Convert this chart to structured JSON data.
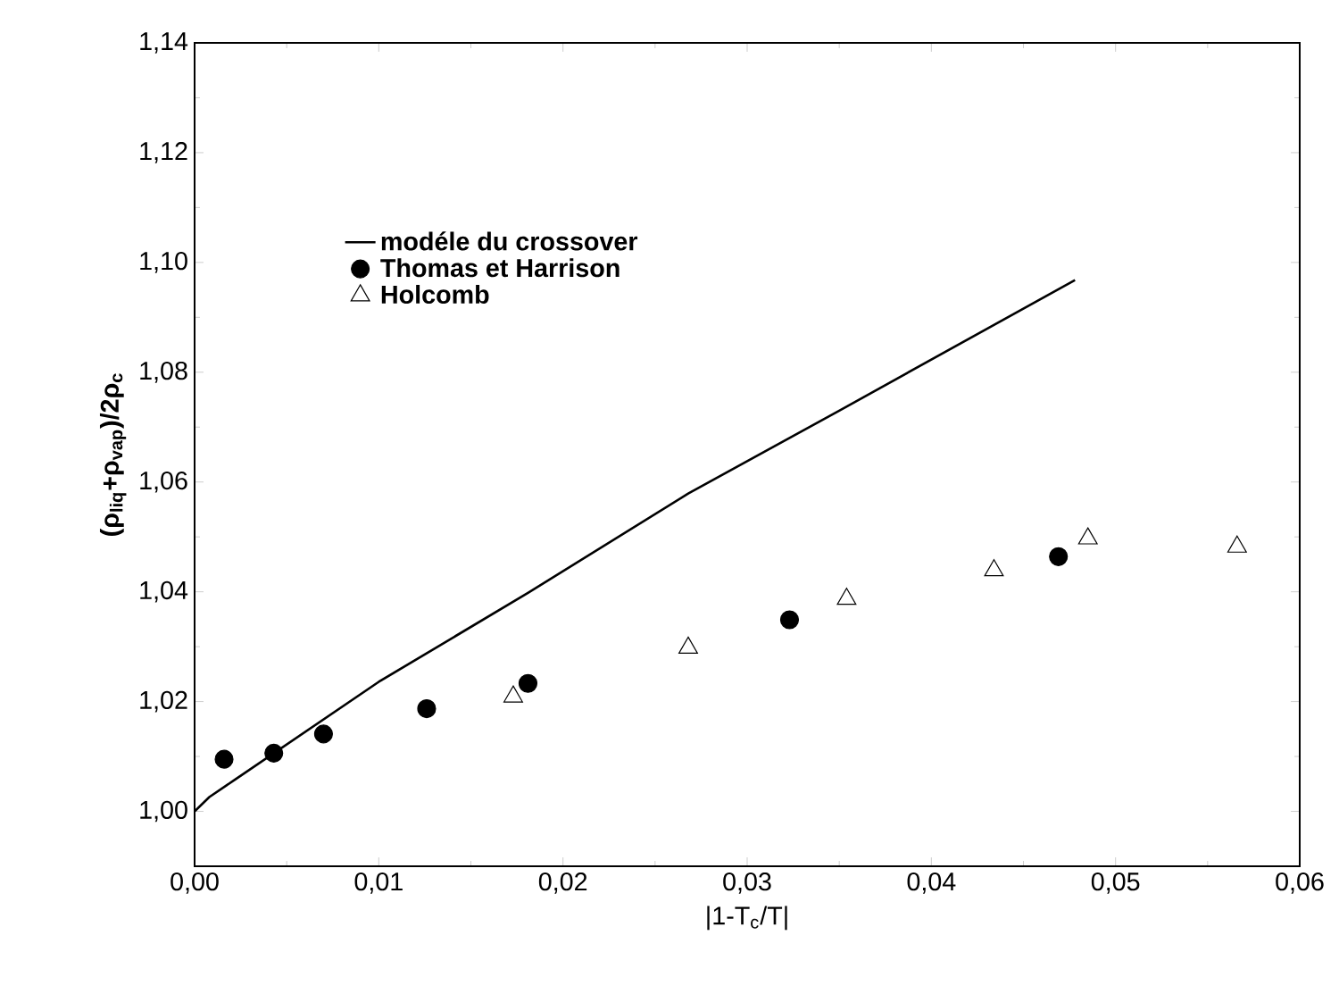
{
  "chart_data": {
    "type": "scatter",
    "xlabel": "|1-T$_{c}$/T|",
    "ylabel": "(ρ$_{liq}$+ρ$_{vap}$)/2ρ$_{c}$",
    "xlim": [
      0,
      0.06
    ],
    "ylim": [
      0.99,
      1.14
    ],
    "xticks": [
      {
        "value": 0,
        "label": "0,00"
      },
      {
        "value": 0.01,
        "label": "0,01"
      },
      {
        "value": 0.02,
        "label": "0,02"
      },
      {
        "value": 0.03,
        "label": "0,03"
      },
      {
        "value": 0.04,
        "label": "0,04"
      },
      {
        "value": 0.05,
        "label": "0,05"
      },
      {
        "value": 0.06,
        "label": "0,06"
      }
    ],
    "yticks": [
      {
        "value": 1.0,
        "label": "1,00"
      },
      {
        "value": 1.02,
        "label": "1,02"
      },
      {
        "value": 1.04,
        "label": "1,04"
      },
      {
        "value": 1.06,
        "label": "1,06"
      },
      {
        "value": 1.08,
        "label": "1,08"
      },
      {
        "value": 1.1,
        "label": "1,10"
      },
      {
        "value": 1.12,
        "label": "1,12"
      },
      {
        "value": 1.14,
        "label": "1,14"
      }
    ],
    "grid": false,
    "legend": "top left",
    "series": [
      {
        "name": "modéle du crossover",
        "type": "line",
        "color": "#000000",
        "marker": "none",
        "line_style": "solid",
        "x": [
          0,
          0.0008,
          0.0022,
          0.01,
          0.0181,
          0.0268,
          0.035,
          0.0478
        ],
        "values": [
          1.0,
          1.0026,
          1.0058,
          1.0236,
          1.0398,
          1.0579,
          1.073,
          1.0968
        ]
      },
      {
        "name": "Thomas et Harrison",
        "color": "#000000",
        "marker": "circle",
        "x": [
          0.0016,
          0.0043,
          0.007,
          0.0126,
          0.0181,
          0.0323,
          0.0469
        ],
        "values": [
          1.0095,
          1.0106,
          1.0141,
          1.0187,
          1.0233,
          1.0349,
          1.0464
        ]
      },
      {
        "name": "Holcomb",
        "color": "#000000",
        "marker": "triangle",
        "x": [
          0.0173,
          0.0268,
          0.0354,
          0.0434,
          0.0485,
          0.0566
        ],
        "values": [
          1.0209,
          1.0298,
          1.0387,
          1.0439,
          1.0497,
          1.0482
        ]
      }
    ]
  }
}
